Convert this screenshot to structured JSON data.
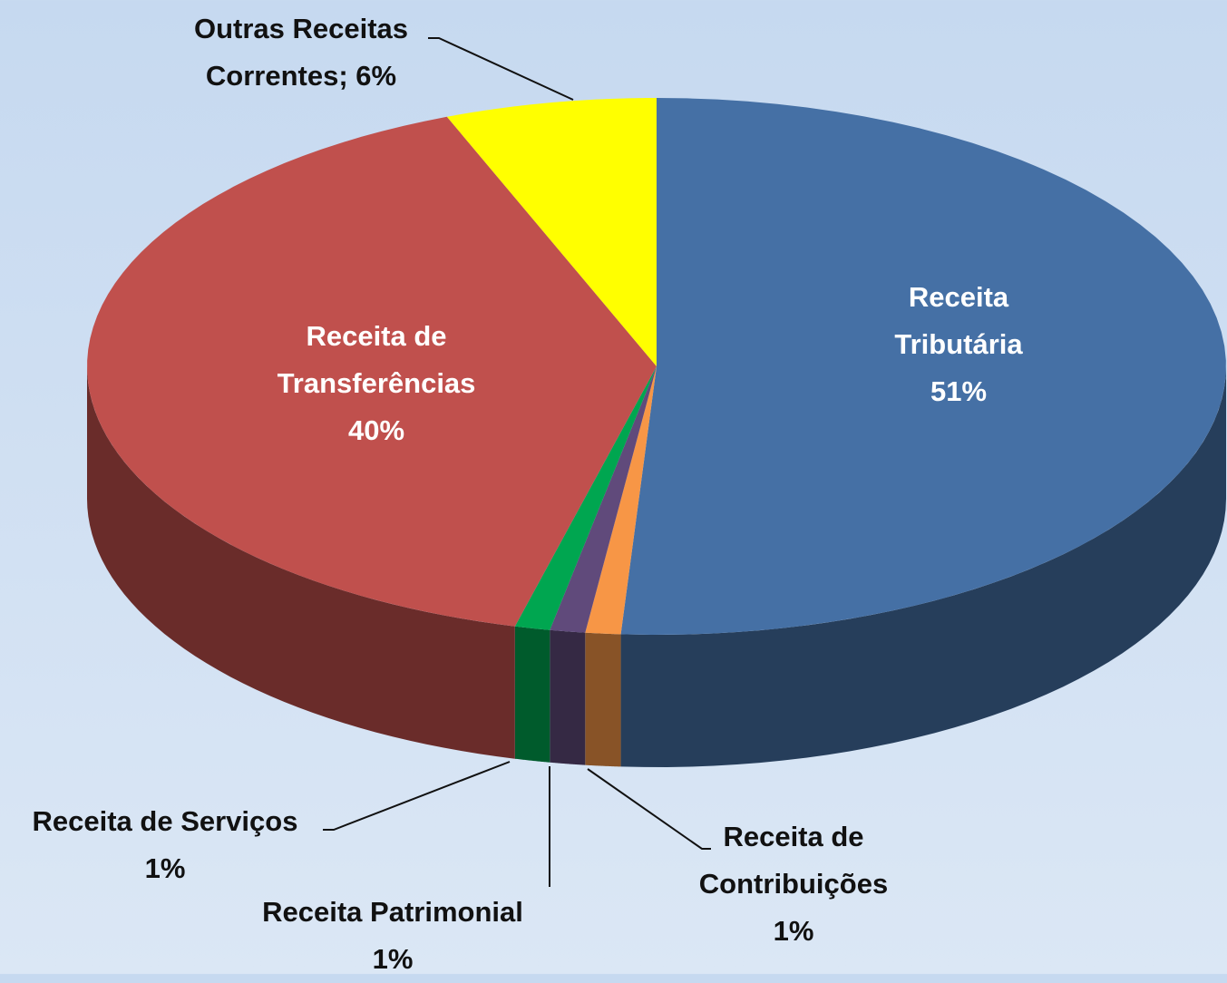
{
  "chart_data": {
    "type": "pie",
    "categories": [
      "Receita Tributária",
      "Receita de Contribuições",
      "Receita Patrimonial",
      "Receita de Serviços",
      "Receita de Transferências",
      "Outras Receitas Correntes;"
    ],
    "values": [
      51,
      1,
      1,
      1,
      40,
      6
    ],
    "value_labels": [
      "51%",
      "1%",
      "1%",
      "1%",
      "40%",
      "6%"
    ],
    "colors": [
      "#4570a5",
      "#f79646",
      "#604a7b",
      "#00a650",
      "#c0504d",
      "#ffff00"
    ]
  }
}
